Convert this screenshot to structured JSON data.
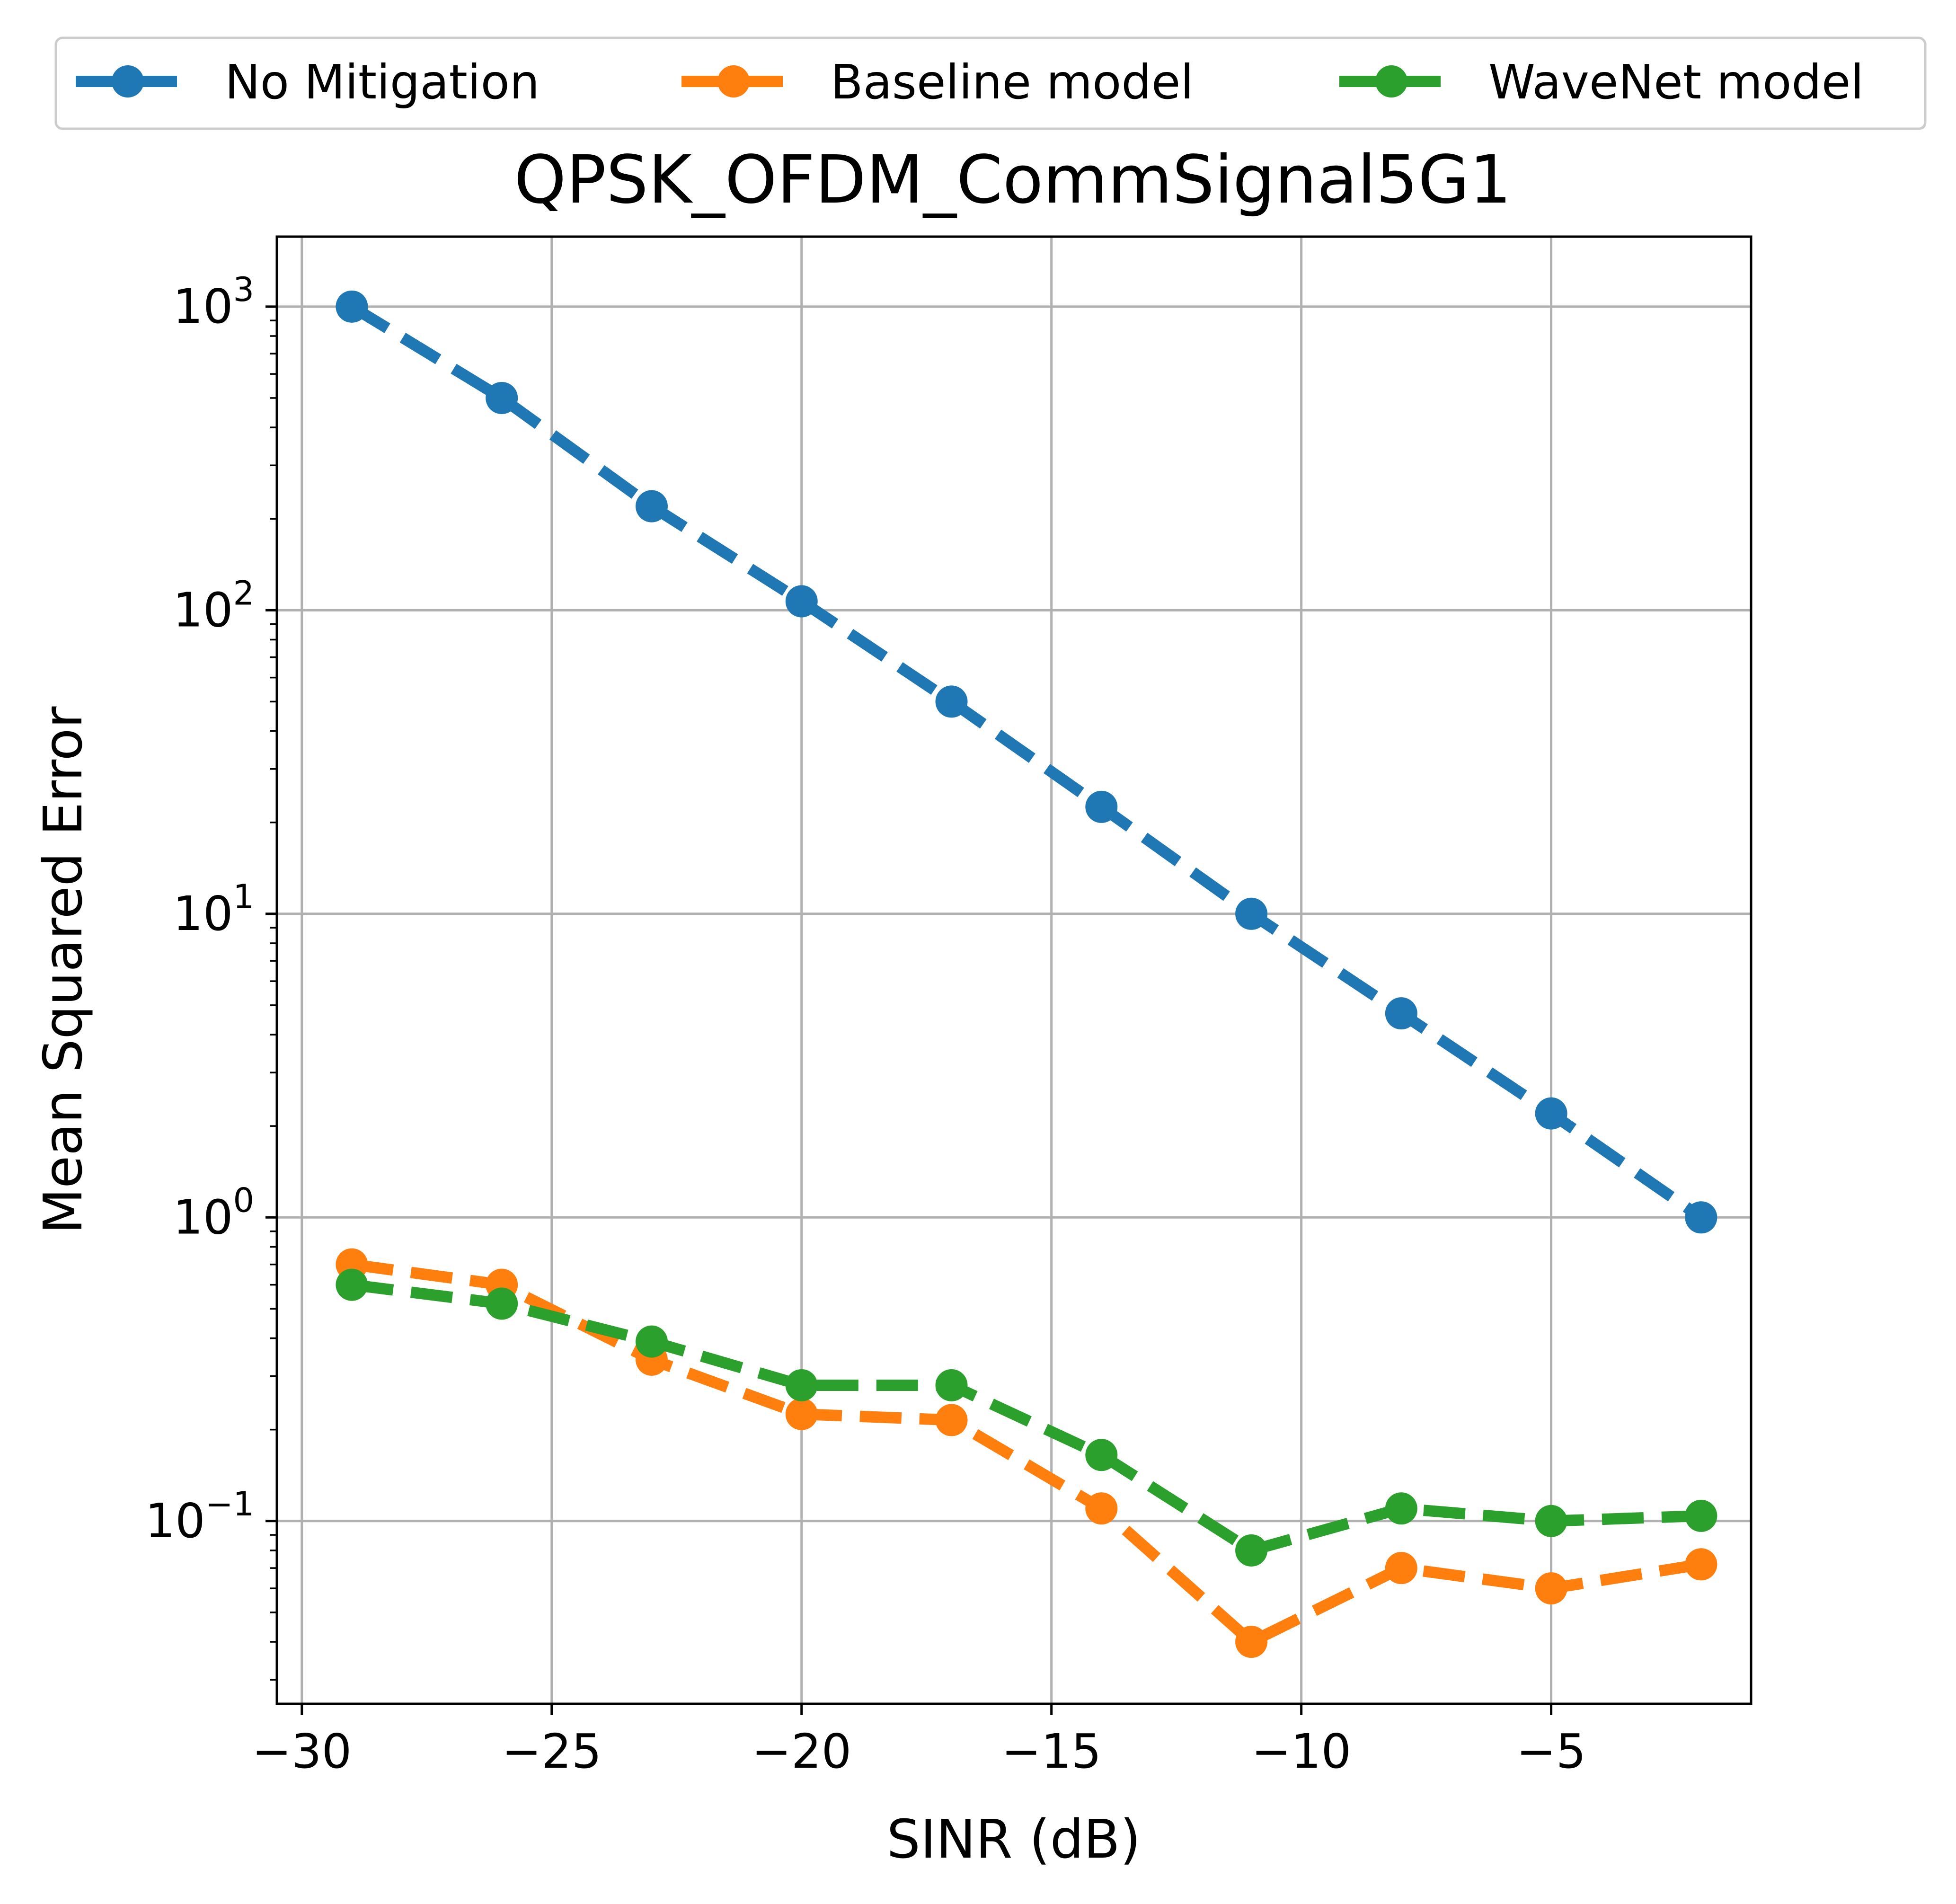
{
  "chart_data": {
    "type": "line",
    "title": "QPSK_OFDM_CommSignal5G1",
    "xlabel": "SINR (dB)",
    "ylabel": "Mean Squared Error",
    "x_ticks": [
      "−30",
      "−25",
      "−20",
      "−15",
      "−10",
      "−5"
    ],
    "y_ticks": [
      {
        "base": "10",
        "exp": "−1"
      },
      {
        "base": "10",
        "exp": "0"
      },
      {
        "base": "10",
        "exp": "1"
      },
      {
        "base": "10",
        "exp": "2"
      },
      {
        "base": "10",
        "exp": "3"
      }
    ],
    "y_scale": "log",
    "xlim": [
      -30.5,
      -1
    ],
    "ylim": [
      0.025,
      1700
    ],
    "grid": true,
    "legend_position": "top, above title",
    "x": [
      -29,
      -26,
      -23,
      -20,
      -17,
      -14,
      -11,
      -8,
      -5,
      -2
    ],
    "series": [
      {
        "name": "No Mitigation",
        "color": "#1f77b4",
        "values": [
          1000,
          500,
          220,
          107,
          50,
          22.5,
          10,
          4.7,
          2.2,
          1.0
        ]
      },
      {
        "name": "Baseline model",
        "color": "#ff7f0e",
        "values": [
          0.7,
          0.6,
          0.34,
          0.225,
          0.215,
          0.11,
          0.04,
          0.07,
          0.06,
          0.072
        ]
      },
      {
        "name": "WaveNet model",
        "color": "#2ca02c",
        "values": [
          0.6,
          0.52,
          0.39,
          0.28,
          0.28,
          0.165,
          0.08,
          0.11,
          0.1,
          0.104
        ]
      }
    ]
  }
}
